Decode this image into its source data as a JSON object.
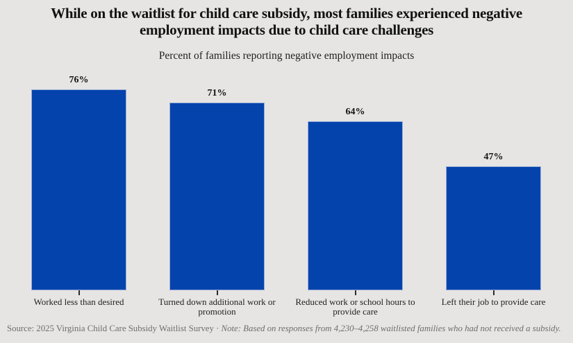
{
  "chart_data": {
    "type": "bar",
    "title": "While on the waitlist for child care subsidy, most families experienced negative employment impacts due to child care challenges",
    "subtitle": "Percent of families reporting negative employment impacts",
    "categories": [
      "Worked less than desired",
      "Turned down additional work or promotion",
      "Reduced work or school hours to provide care",
      "Left their job to provide care"
    ],
    "values": [
      76,
      71,
      64,
      47
    ],
    "value_labels": [
      "76%",
      "71%",
      "64%",
      "47%"
    ],
    "xlabel": "",
    "ylabel": "",
    "ylim": [
      0,
      100
    ],
    "grid": false,
    "legend": false,
    "bar_color": "#0443ac",
    "background_color": "#e6e5e3",
    "text_color": "#121212",
    "footer_color": "#6e6e6e"
  },
  "footer": {
    "source": "Source: 2025 Virginia Child Care Subsidy Waitlist Survey",
    "separator": " · ",
    "note": "Note: Based on responses from 4,230–4,258 waitlisted families who had not received a subsidy."
  }
}
